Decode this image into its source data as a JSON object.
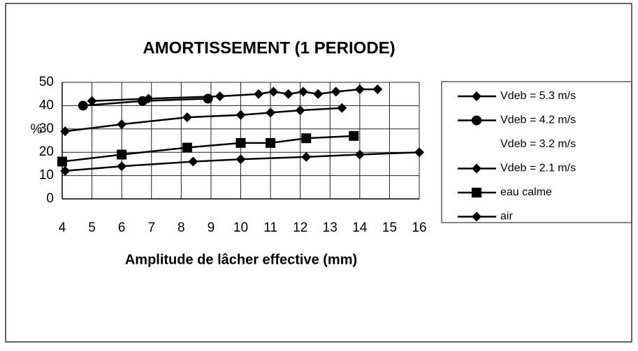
{
  "chart_data": {
    "type": "line",
    "title": "AMORTISSEMENT (1 PERIODE)",
    "xlabel": "Amplitude de lâcher effective (mm)",
    "ylabel": "%",
    "xlim": [
      4,
      16
    ],
    "xticks": [
      4,
      5,
      6,
      7,
      8,
      9,
      10,
      11,
      12,
      13,
      14,
      15,
      16
    ],
    "ylim": [
      0,
      50
    ],
    "yticks": [
      0,
      10,
      20,
      30,
      40,
      50
    ],
    "grid": true,
    "legend": "right",
    "series": [
      {
        "name": "Vdeb = 5.3 m/s",
        "color": "#000000",
        "marker": "diamond",
        "x": [
          5,
          6.9,
          9.3,
          10.6,
          11.1,
          11.6,
          12.1,
          12.6,
          13.2,
          14,
          14.6
        ],
        "values": [
          42,
          43,
          44,
          45,
          46,
          45,
          46,
          45,
          46,
          47,
          47
        ]
      },
      {
        "name": "Vdeb = 4.2 m/s",
        "color": "#000000",
        "marker": "circle",
        "x": [
          4.7,
          6.7,
          8.9
        ],
        "values": [
          40,
          42,
          43
        ]
      },
      {
        "name": "Vdeb = 3.2 m/s",
        "color": "#ffffff",
        "marker": "none",
        "x": [],
        "values": []
      },
      {
        "name": "Vdeb = 2.1 m/s",
        "color": "#000000",
        "marker": "diamond",
        "x": [
          4.1,
          6,
          8.2,
          10,
          11,
          12,
          13.4
        ],
        "values": [
          29,
          32,
          35,
          36,
          37,
          38,
          39
        ]
      },
      {
        "name": "eau calme",
        "color": "#000000",
        "marker": "square",
        "x": [
          4,
          6,
          8.2,
          10,
          11,
          12.2,
          13.8
        ],
        "values": [
          16,
          19,
          22,
          24,
          24,
          26,
          27
        ]
      },
      {
        "name": "air",
        "color": "#000000",
        "marker": "diamond",
        "x": [
          4.1,
          6,
          8.4,
          10,
          12.2,
          14,
          16
        ],
        "values": [
          12,
          14,
          16,
          17,
          18,
          19,
          20
        ]
      }
    ]
  }
}
